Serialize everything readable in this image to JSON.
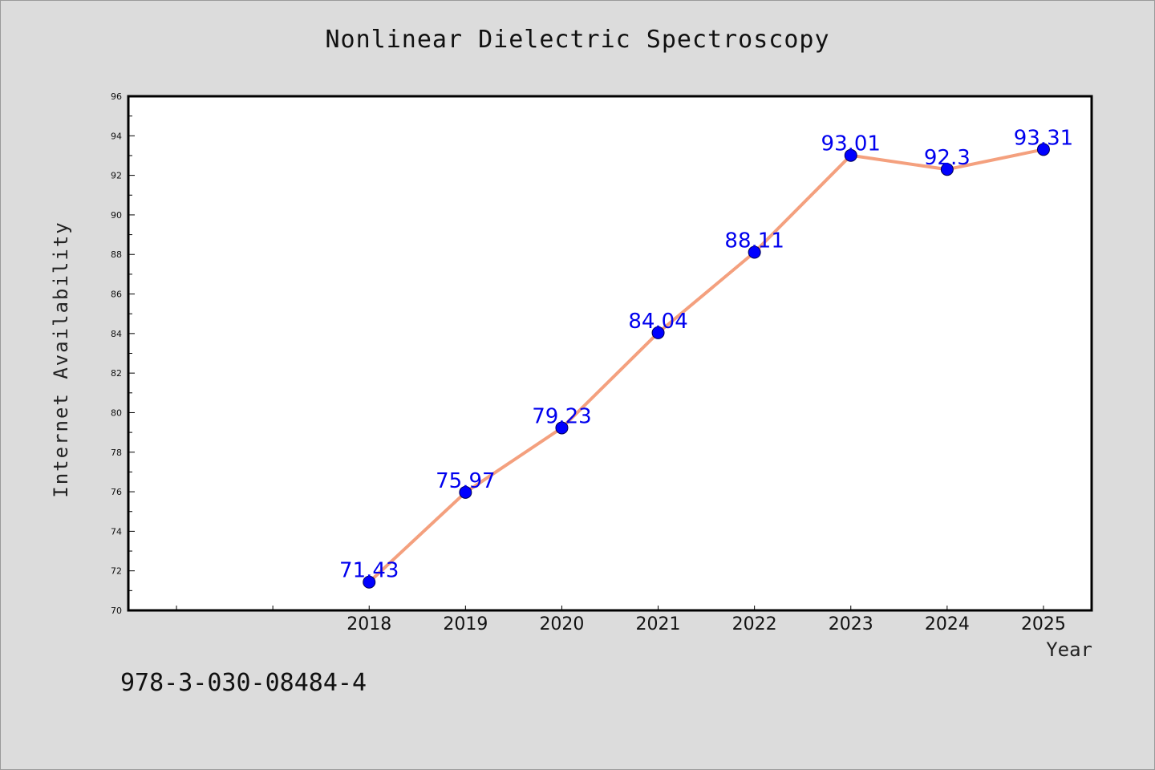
{
  "title": "Nonlinear Dielectric Spectroscopy",
  "footer_text": "978-3-030-08484-4",
  "chart_data": {
    "type": "line",
    "x": [
      2018,
      2019,
      2020,
      2021,
      2022,
      2023,
      2024,
      2025
    ],
    "values": [
      71.43,
      75.97,
      79.23,
      84.04,
      88.11,
      93.01,
      92.3,
      93.31
    ],
    "data_labels": [
      "71.43",
      "75.97",
      "79.23",
      "84.04",
      "88.11",
      "93.01",
      "92.3",
      "93.31"
    ],
    "xlabel": "Year",
    "ylabel": "Internet Availability",
    "ylim": [
      70,
      96
    ],
    "xlim": [
      2015.5,
      2025.5
    ],
    "yticks": [
      70,
      72,
      74,
      76,
      78,
      80,
      82,
      84,
      86,
      88,
      90,
      92,
      94,
      96
    ],
    "xticks": [
      2018,
      2019,
      2020,
      2021,
      2022,
      2023,
      2024,
      2025
    ],
    "grid": false,
    "line_color": "#f4a07e",
    "marker_color": "#0000ff",
    "label_color": "#0000ee"
  }
}
